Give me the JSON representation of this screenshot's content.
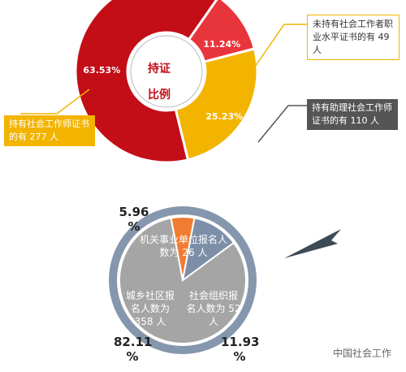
{
  "chart_data": [
    {
      "type": "donut",
      "center_text": [
        "持证",
        "比例"
      ],
      "values": [
        11.24,
        25.23,
        63.53
      ],
      "value_labels": [
        "11.24%",
        "25.23%",
        "63.53%"
      ],
      "colors": [
        "#e8353b",
        "#f3b400",
        "#c30d17"
      ],
      "annotations": [
        "未持有社会工作者职业水平证书的有 49 人",
        "持有助理社会工作师证书的有 110 人",
        "持有社会工作师证书的有 277 人"
      ]
    },
    {
      "type": "pie",
      "categories": [
        "机关事业单位报名人数为 26 人",
        "城乡社区报名人数为 358 人",
        "社会组织报名人数为 52 人"
      ],
      "values": [
        5.96,
        82.11,
        11.93
      ],
      "value_labels": [
        "5.96 %",
        "82.11 %",
        "11.93 %"
      ],
      "colors": [
        "#ee7d31",
        "#a5a5a5",
        "#7d8fa8"
      ]
    }
  ],
  "watermark": "中国社会工作"
}
